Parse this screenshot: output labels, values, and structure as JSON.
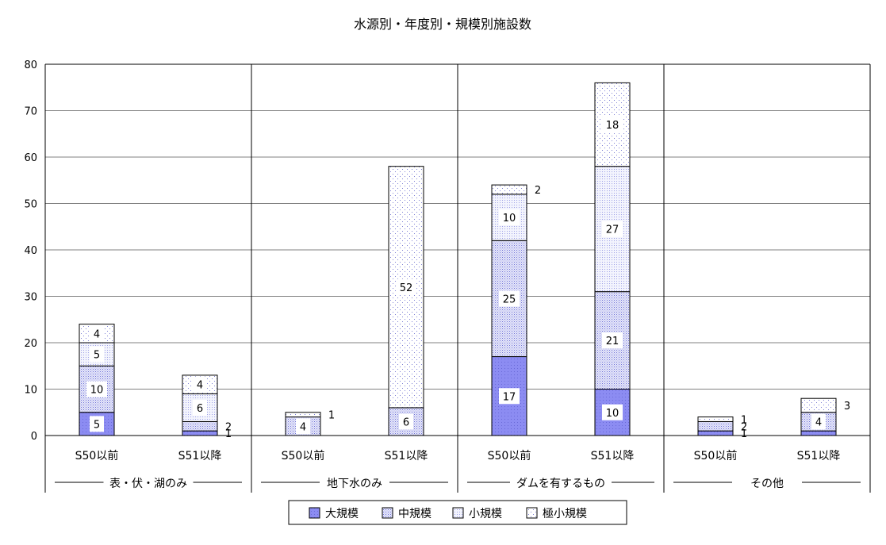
{
  "chart_data": {
    "type": "bar",
    "stacked": true,
    "title": "水源別・年度別・規模別施設数",
    "xlabel": "",
    "ylabel": "",
    "ylim": [
      0,
      80
    ],
    "yticks": [
      "0",
      "10",
      "20",
      "30",
      "40",
      "50",
      "60",
      "70",
      "80"
    ],
    "grid": true,
    "legend_position": "bottom",
    "groups": [
      {
        "label": "表・伏・湖のみ",
        "categories": [
          "S50以前",
          "S51以降"
        ]
      },
      {
        "label": "地下水のみ",
        "categories": [
          "S50以前",
          "S51以降"
        ]
      },
      {
        "label": "ダムを有するもの",
        "categories": [
          "S50以前",
          "S51以降"
        ]
      },
      {
        "label": "その他",
        "categories": [
          "S50以前",
          "S51以降"
        ]
      }
    ],
    "categories": [
      "S50以前",
      "S51以降",
      "S50以前",
      "S51以降",
      "S50以前",
      "S51以降",
      "S50以前",
      "S51以降"
    ],
    "series": [
      {
        "name": "大規模",
        "color": "#8a8af0",
        "values": [
          5,
          1,
          0,
          0,
          17,
          10,
          1,
          1
        ]
      },
      {
        "name": "中規模",
        "color": "#c4c6f2",
        "values": [
          10,
          2,
          4,
          6,
          25,
          21,
          2,
          4
        ]
      },
      {
        "name": "小規模",
        "color": "#e3e5f8",
        "values": [
          5,
          6,
          0,
          0,
          10,
          27,
          0,
          0
        ]
      },
      {
        "name": "極小規模",
        "color": "#f6f6fc",
        "values": [
          4,
          4,
          1,
          52,
          2,
          18,
          1,
          3
        ]
      }
    ],
    "data_labels": [
      {
        "category_index": 0,
        "series": "大規模",
        "text": "5"
      },
      {
        "category_index": 0,
        "series": "中規模",
        "text": "10"
      },
      {
        "category_index": 0,
        "series": "小規模",
        "text": "5"
      },
      {
        "category_index": 0,
        "series": "極小規模",
        "text": "4"
      },
      {
        "category_index": 1,
        "series": "大規模",
        "text": "1"
      },
      {
        "category_index": 1,
        "series": "中規模",
        "text": "2"
      },
      {
        "category_index": 1,
        "series": "小規模",
        "text": "6"
      },
      {
        "category_index": 1,
        "series": "極小規模",
        "text": "4"
      },
      {
        "category_index": 2,
        "series": "中規模",
        "text": "4"
      },
      {
        "category_index": 2,
        "series": "極小規模",
        "text": "1"
      },
      {
        "category_index": 3,
        "series": "中規模",
        "text": "6"
      },
      {
        "category_index": 3,
        "series": "極小規模",
        "text": "52"
      },
      {
        "category_index": 4,
        "series": "大規模",
        "text": "17"
      },
      {
        "category_index": 4,
        "series": "中規模",
        "text": "25"
      },
      {
        "category_index": 4,
        "series": "小規模",
        "text": "10"
      },
      {
        "category_index": 4,
        "series": "極小規模",
        "text": "2"
      },
      {
        "category_index": 5,
        "series": "大規模",
        "text": "10"
      },
      {
        "category_index": 5,
        "series": "中規模",
        "text": "21"
      },
      {
        "category_index": 5,
        "series": "小規模",
        "text": "27"
      },
      {
        "category_index": 5,
        "series": "極小規模",
        "text": "18"
      },
      {
        "category_index": 6,
        "series": "大規模",
        "text": "1"
      },
      {
        "category_index": 6,
        "series": "中規模",
        "text": "2"
      },
      {
        "category_index": 6,
        "series": "極小規模",
        "text": "1"
      },
      {
        "category_index": 7,
        "series": "中規模",
        "text": "4"
      },
      {
        "category_index": 7,
        "series": "極小規模",
        "text": "3"
      }
    ]
  }
}
